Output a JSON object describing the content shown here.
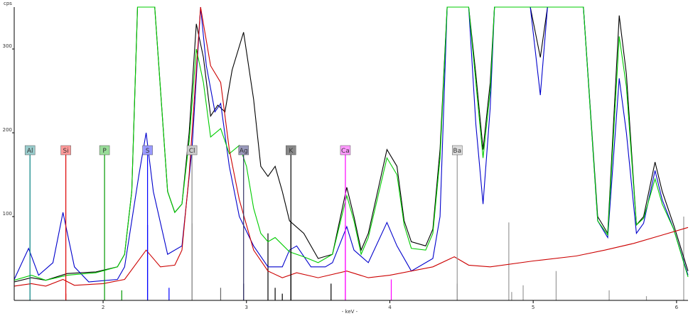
{
  "chart_data": {
    "type": "line",
    "title": "",
    "xlabel": "- keV -",
    "ylabel": "cps",
    "xlim": [
      1.38,
      6.08
    ],
    "ylim": [
      0,
      350
    ],
    "x_ticks": [
      2,
      3,
      4,
      5,
      6
    ],
    "y_ticks": [
      100,
      200,
      300
    ],
    "grid": false,
    "legend": "none",
    "series": [
      {
        "color": "#000000",
        "points": [
          [
            1.38,
            22
          ],
          [
            1.5,
            27
          ],
          [
            1.6,
            24
          ],
          [
            1.75,
            32
          ],
          [
            1.95,
            34
          ],
          [
            2.1,
            40
          ],
          [
            2.15,
            55
          ],
          [
            2.2,
            130
          ],
          [
            2.24,
            360
          ],
          [
            2.36,
            360
          ],
          [
            2.45,
            130
          ],
          [
            2.5,
            105
          ],
          [
            2.55,
            115
          ],
          [
            2.6,
            200
          ],
          [
            2.65,
            330
          ],
          [
            2.7,
            290
          ],
          [
            2.75,
            220
          ],
          [
            2.8,
            233
          ],
          [
            2.85,
            225
          ],
          [
            2.9,
            275
          ],
          [
            2.98,
            320
          ],
          [
            3.05,
            240
          ],
          [
            3.1,
            160
          ],
          [
            3.15,
            148
          ],
          [
            3.2,
            160
          ],
          [
            3.25,
            130
          ],
          [
            3.3,
            95
          ],
          [
            3.4,
            80
          ],
          [
            3.5,
            50
          ],
          [
            3.6,
            55
          ],
          [
            3.7,
            135
          ],
          [
            3.75,
            100
          ],
          [
            3.8,
            60
          ],
          [
            3.85,
            80
          ],
          [
            3.98,
            180
          ],
          [
            4.05,
            160
          ],
          [
            4.1,
            95
          ],
          [
            4.15,
            70
          ],
          [
            4.25,
            65
          ],
          [
            4.3,
            85
          ],
          [
            4.35,
            180
          ],
          [
            4.4,
            360
          ],
          [
            4.55,
            360
          ],
          [
            4.6,
            270
          ],
          [
            4.65,
            180
          ],
          [
            4.7,
            260
          ],
          [
            4.73,
            360
          ],
          [
            4.98,
            360
          ],
          [
            5.05,
            290
          ],
          [
            5.1,
            360
          ],
          [
            5.35,
            360
          ],
          [
            5.45,
            100
          ],
          [
            5.52,
            80
          ],
          [
            5.6,
            340
          ],
          [
            5.65,
            270
          ],
          [
            5.72,
            90
          ],
          [
            5.77,
            100
          ],
          [
            5.85,
            165
          ],
          [
            5.9,
            130
          ],
          [
            5.98,
            90
          ],
          [
            6.08,
            35
          ]
        ]
      },
      {
        "color": "#0000cc",
        "points": [
          [
            1.38,
            25
          ],
          [
            1.48,
            62
          ],
          [
            1.55,
            30
          ],
          [
            1.65,
            45
          ],
          [
            1.72,
            105
          ],
          [
            1.8,
            40
          ],
          [
            1.9,
            22
          ],
          [
            2.1,
            25
          ],
          [
            2.15,
            40
          ],
          [
            2.25,
            150
          ],
          [
            2.3,
            200
          ],
          [
            2.35,
            130
          ],
          [
            2.45,
            55
          ],
          [
            2.55,
            65
          ],
          [
            2.62,
            180
          ],
          [
            2.68,
            360
          ],
          [
            2.72,
            280
          ],
          [
            2.78,
            225
          ],
          [
            2.82,
            235
          ],
          [
            2.88,
            160
          ],
          [
            2.95,
            100
          ],
          [
            3.05,
            65
          ],
          [
            3.15,
            40
          ],
          [
            3.25,
            40
          ],
          [
            3.3,
            60
          ],
          [
            3.35,
            65
          ],
          [
            3.45,
            40
          ],
          [
            3.55,
            40
          ],
          [
            3.6,
            45
          ],
          [
            3.7,
            88
          ],
          [
            3.75,
            60
          ],
          [
            3.85,
            45
          ],
          [
            3.98,
            93
          ],
          [
            4.05,
            65
          ],
          [
            4.15,
            35
          ],
          [
            4.3,
            50
          ],
          [
            4.35,
            100
          ],
          [
            4.4,
            360
          ],
          [
            4.55,
            360
          ],
          [
            4.6,
            210
          ],
          [
            4.65,
            115
          ],
          [
            4.7,
            230
          ],
          [
            4.73,
            360
          ],
          [
            4.98,
            360
          ],
          [
            5.05,
            245
          ],
          [
            5.1,
            360
          ],
          [
            5.35,
            360
          ],
          [
            5.45,
            95
          ],
          [
            5.52,
            75
          ],
          [
            5.6,
            265
          ],
          [
            5.65,
            200
          ],
          [
            5.72,
            80
          ],
          [
            5.77,
            92
          ],
          [
            5.85,
            155
          ],
          [
            5.9,
            120
          ],
          [
            5.98,
            85
          ],
          [
            6.08,
            30
          ]
        ]
      },
      {
        "color": "#00cc00",
        "points": [
          [
            1.38,
            24
          ],
          [
            1.5,
            30
          ],
          [
            1.6,
            24
          ],
          [
            1.75,
            30
          ],
          [
            1.95,
            33
          ],
          [
            2.1,
            40
          ],
          [
            2.15,
            55
          ],
          [
            2.2,
            130
          ],
          [
            2.24,
            360
          ],
          [
            2.36,
            360
          ],
          [
            2.45,
            130
          ],
          [
            2.5,
            105
          ],
          [
            2.55,
            115
          ],
          [
            2.6,
            190
          ],
          [
            2.65,
            300
          ],
          [
            2.7,
            260
          ],
          [
            2.75,
            195
          ],
          [
            2.82,
            205
          ],
          [
            2.88,
            175
          ],
          [
            2.95,
            185
          ],
          [
            3.0,
            160
          ],
          [
            3.05,
            110
          ],
          [
            3.1,
            80
          ],
          [
            3.15,
            70
          ],
          [
            3.2,
            75
          ],
          [
            3.3,
            58
          ],
          [
            3.4,
            52
          ],
          [
            3.5,
            45
          ],
          [
            3.6,
            55
          ],
          [
            3.7,
            125
          ],
          [
            3.75,
            95
          ],
          [
            3.8,
            55
          ],
          [
            3.85,
            75
          ],
          [
            3.98,
            170
          ],
          [
            4.05,
            150
          ],
          [
            4.1,
            90
          ],
          [
            4.15,
            62
          ],
          [
            4.25,
            60
          ],
          [
            4.3,
            80
          ],
          [
            4.35,
            170
          ],
          [
            4.4,
            360
          ],
          [
            4.55,
            360
          ],
          [
            4.6,
            260
          ],
          [
            4.65,
            170
          ],
          [
            4.7,
            250
          ],
          [
            4.73,
            360
          ],
          [
            4.98,
            360
          ],
          [
            5.05,
            350
          ],
          [
            5.1,
            360
          ],
          [
            5.35,
            360
          ],
          [
            5.45,
            95
          ],
          [
            5.52,
            78
          ],
          [
            5.6,
            315
          ],
          [
            5.65,
            255
          ],
          [
            5.72,
            90
          ],
          [
            5.77,
            98
          ],
          [
            5.85,
            145
          ],
          [
            5.9,
            115
          ],
          [
            5.98,
            85
          ],
          [
            6.08,
            28
          ]
        ]
      },
      {
        "color": "#cc0000",
        "points": [
          [
            1.38,
            17
          ],
          [
            1.5,
            20
          ],
          [
            1.6,
            17
          ],
          [
            1.72,
            25
          ],
          [
            1.8,
            18
          ],
          [
            2.0,
            20
          ],
          [
            2.15,
            25
          ],
          [
            2.3,
            60
          ],
          [
            2.4,
            40
          ],
          [
            2.5,
            42
          ],
          [
            2.55,
            60
          ],
          [
            2.6,
            150
          ],
          [
            2.68,
            360
          ],
          [
            2.75,
            280
          ],
          [
            2.82,
            260
          ],
          [
            2.88,
            180
          ],
          [
            2.95,
            120
          ],
          [
            3.05,
            60
          ],
          [
            3.15,
            35
          ],
          [
            3.25,
            27
          ],
          [
            3.35,
            33
          ],
          [
            3.5,
            27
          ],
          [
            3.7,
            35
          ],
          [
            3.85,
            27
          ],
          [
            4.0,
            30
          ],
          [
            4.3,
            40
          ],
          [
            4.45,
            52
          ],
          [
            4.55,
            42
          ],
          [
            4.7,
            40
          ],
          [
            5.0,
            47
          ],
          [
            5.3,
            53
          ],
          [
            5.5,
            60
          ],
          [
            5.7,
            68
          ],
          [
            5.9,
            78
          ],
          [
            6.08,
            87
          ]
        ]
      }
    ],
    "element_lines": [
      {
        "symbol": "Al",
        "energy": 1.49,
        "color": "#008080",
        "label_bg": "#99cccc"
      },
      {
        "symbol": "Si",
        "energy": 1.74,
        "color": "#dd0000",
        "label_bg": "#ff9999"
      },
      {
        "symbol": "P",
        "energy": 2.01,
        "color": "#009900",
        "label_bg": "#99dd99"
      },
      {
        "symbol": "S",
        "energy": 2.31,
        "color": "#0000ff",
        "label_bg": "#9999ff"
      },
      {
        "symbol": "Cl",
        "energy": 2.62,
        "color": "#888888",
        "label_bg": "#cccccc"
      },
      {
        "symbol": "Ag",
        "energy": 2.98,
        "color": "#333366",
        "label_bg": "#9999bb"
      },
      {
        "symbol": "K",
        "energy": 3.31,
        "color": "#000000",
        "label_bg": "#888888"
      },
      {
        "symbol": "Ca",
        "energy": 3.69,
        "color": "#ff00ff",
        "label_bg": "#ff99ff"
      },
      {
        "symbol": "Ba",
        "energy": 4.47,
        "color": "#999999",
        "label_bg": "#dddddd"
      }
    ],
    "marker_ticks": [
      {
        "energy": 1.74,
        "height": 8,
        "color": "#cc0000"
      },
      {
        "energy": 2.31,
        "height": 90,
        "color": "#0000ff"
      },
      {
        "energy": 2.46,
        "height": 15,
        "color": "#0000ff"
      },
      {
        "energy": 2.13,
        "height": 12,
        "color": "#009900"
      },
      {
        "energy": 2.62,
        "height": 92,
        "color": "#666666"
      },
      {
        "energy": 2.82,
        "height": 15,
        "color": "#666666"
      },
      {
        "energy": 2.98,
        "height": 20,
        "color": "#333366"
      },
      {
        "energy": 3.15,
        "height": 80,
        "color": "#000000"
      },
      {
        "energy": 3.2,
        "height": 15,
        "color": "#000000"
      },
      {
        "energy": 3.25,
        "height": 8,
        "color": "#000000"
      },
      {
        "energy": 3.31,
        "height": 95,
        "color": "#000000"
      },
      {
        "energy": 3.59,
        "height": 20,
        "color": "#000000"
      },
      {
        "energy": 3.69,
        "height": 90,
        "color": "#ff00ff"
      },
      {
        "energy": 4.01,
        "height": 25,
        "color": "#ff00ff"
      },
      {
        "energy": 4.47,
        "height": 20,
        "color": "#999999"
      },
      {
        "energy": 4.83,
        "height": 93,
        "color": "#999999"
      },
      {
        "energy": 4.85,
        "height": 10,
        "color": "#999999"
      },
      {
        "energy": 4.93,
        "height": 18,
        "color": "#999999"
      },
      {
        "energy": 5.16,
        "height": 35,
        "color": "#999999"
      },
      {
        "energy": 5.53,
        "height": 12,
        "color": "#999999"
      },
      {
        "energy": 5.79,
        "height": 5,
        "color": "#999999"
      },
      {
        "energy": 6.05,
        "height": 100,
        "color": "#999999"
      }
    ]
  }
}
